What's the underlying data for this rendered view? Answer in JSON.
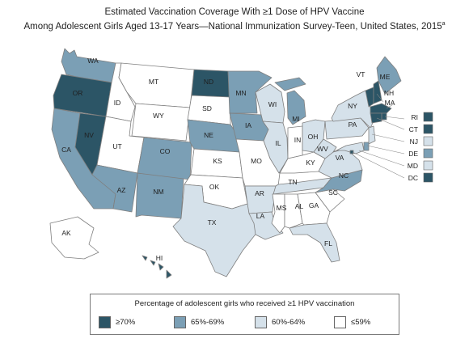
{
  "title_line1": "Estimated Vaccination Coverage With ≥1 Dose of HPV Vaccine",
  "title_line2": "Among Adolescent Girls Aged 13-17 Years—National Immunization Survey-Teen, United States, 2015",
  "title_footnote": "a",
  "colors": {
    "very_high": "#2c5566",
    "high": "#7b9fb5",
    "medium": "#d5e1ea",
    "low": "#ffffff",
    "border": "#7f7f7f",
    "label": "#1f1f1f"
  },
  "legend": {
    "title": "Percentage of adolescent girls who received ≥1 HPV vaccination",
    "items": [
      {
        "label": "≥70%",
        "level": "very_high"
      },
      {
        "label": "65%-69%",
        "level": "high"
      },
      {
        "label": "60%-64%",
        "level": "medium"
      },
      {
        "label": "≤59%",
        "level": "low"
      }
    ]
  },
  "states": {
    "WA": "high",
    "OR": "very_high",
    "CA": "high",
    "NV": "very_high",
    "ID": "low",
    "MT": "low",
    "WY": "low",
    "UT": "low",
    "AZ": "high",
    "NM": "high",
    "CO": "high",
    "ND": "very_high",
    "SD": "low",
    "NE": "high",
    "KS": "low",
    "OK": "low",
    "TX": "medium",
    "MN": "high",
    "IA": "high",
    "MO": "low",
    "AR": "medium",
    "LA": "medium",
    "WI": "medium",
    "IL": "medium",
    "MI": "high",
    "IN": "low",
    "OH": "medium",
    "KY": "low",
    "TN": "medium",
    "MS": "low",
    "AL": "low",
    "GA": "low",
    "FL": "medium",
    "SC": "low",
    "NC": "high",
    "VA": "medium",
    "WV": "medium",
    "PA": "medium",
    "NY": "medium",
    "VT": "very_high",
    "NH": "very_high",
    "ME": "high",
    "MA": "very_high",
    "RI": "very_high",
    "CT": "very_high",
    "NJ": "medium",
    "DE": "high",
    "MD": "medium",
    "DC": "very_high",
    "AK": "low",
    "HI": "very_high"
  },
  "side_boxes": [
    {
      "code": "RI",
      "level": "very_high"
    },
    {
      "code": "CT",
      "level": "very_high"
    },
    {
      "code": "NJ",
      "level": "medium"
    },
    {
      "code": "DE",
      "level": "high"
    },
    {
      "code": "MD",
      "level": "medium"
    },
    {
      "code": "DC",
      "level": "very_high"
    }
  ]
}
